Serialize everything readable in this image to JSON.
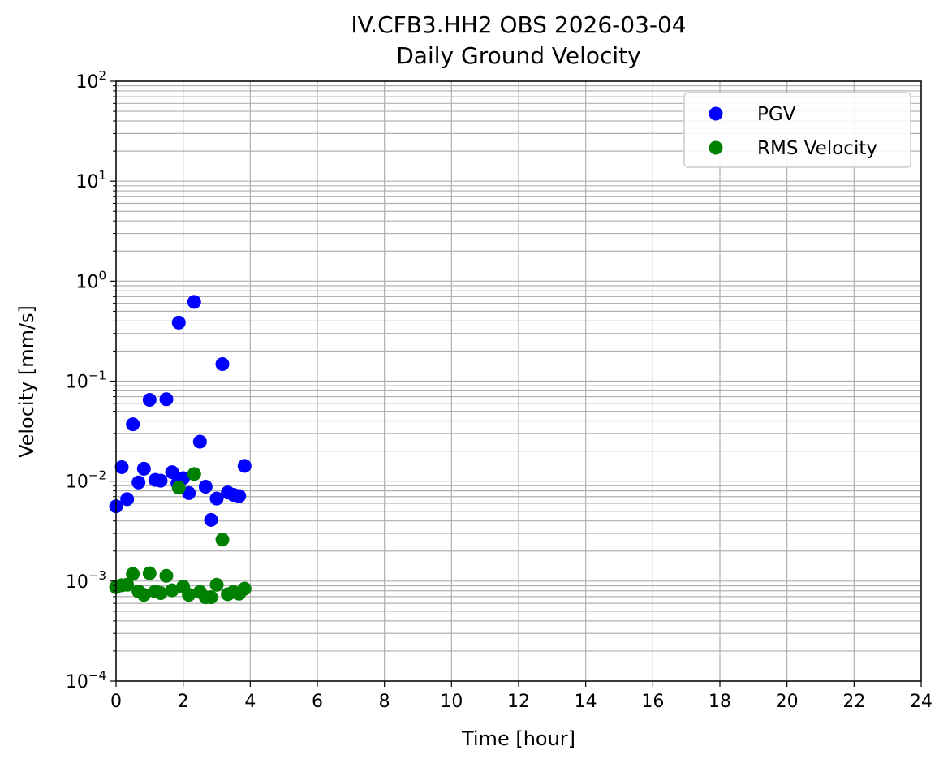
{
  "chart_data": {
    "type": "scatter",
    "title": "IV.CFB3.HH2 OBS 2026-03-04",
    "subtitle": "Daily Ground Velocity",
    "xlabel": "Time [hour]",
    "ylabel": "Velocity [mm/s]",
    "xlim": [
      0,
      24
    ],
    "ylim": [
      0.0001,
      100
    ],
    "yscale": "log",
    "grid": true,
    "legend_position": "top-right",
    "x_ticks": [
      0,
      2,
      4,
      6,
      8,
      10,
      12,
      14,
      16,
      18,
      20,
      22,
      24
    ],
    "y_ticks": [
      {
        "value": 0.0001,
        "base": "10",
        "exp": "−4"
      },
      {
        "value": 0.001,
        "base": "10",
        "exp": "−3"
      },
      {
        "value": 0.01,
        "base": "10",
        "exp": "−2"
      },
      {
        "value": 0.1,
        "base": "10",
        "exp": "−1"
      },
      {
        "value": 1,
        "base": "10",
        "exp": "0"
      },
      {
        "value": 10,
        "base": "10",
        "exp": "1"
      },
      {
        "value": 100,
        "base": "10",
        "exp": "2"
      }
    ],
    "series": [
      {
        "name": "PGV",
        "color": "#0000ff",
        "x": [
          0.0,
          0.17,
          0.33,
          0.5,
          0.67,
          0.83,
          1.0,
          1.17,
          1.33,
          1.5,
          1.67,
          1.83,
          1.87,
          2.0,
          2.17,
          2.33,
          2.5,
          2.67,
          2.83,
          3.0,
          3.17,
          3.33,
          3.5,
          3.67,
          3.83
        ],
        "y": [
          0.0056,
          0.0138,
          0.0066,
          0.037,
          0.0097,
          0.0133,
          0.065,
          0.0103,
          0.0101,
          0.066,
          0.0123,
          0.0095,
          0.385,
          0.0107,
          0.0076,
          0.62,
          0.0248,
          0.0088,
          0.0041,
          0.0067,
          0.148,
          0.0077,
          0.0073,
          0.0071,
          0.0142
        ]
      },
      {
        "name": "RMS Velocity",
        "color": "#008000",
        "x": [
          0.0,
          0.17,
          0.33,
          0.5,
          0.67,
          0.83,
          1.0,
          1.17,
          1.33,
          1.5,
          1.67,
          1.87,
          2.0,
          2.17,
          2.33,
          2.5,
          2.67,
          2.83,
          3.0,
          3.17,
          3.33,
          3.5,
          3.67,
          3.83
        ],
        "y": [
          0.00087,
          0.00091,
          0.00092,
          0.00118,
          0.00079,
          0.00073,
          0.0012,
          0.00079,
          0.00076,
          0.00113,
          0.00081,
          0.0086,
          0.00088,
          0.00073,
          0.0118,
          0.00078,
          0.00069,
          0.00069,
          0.00092,
          0.0026,
          0.00074,
          0.00078,
          0.00075,
          0.00084
        ]
      }
    ]
  }
}
